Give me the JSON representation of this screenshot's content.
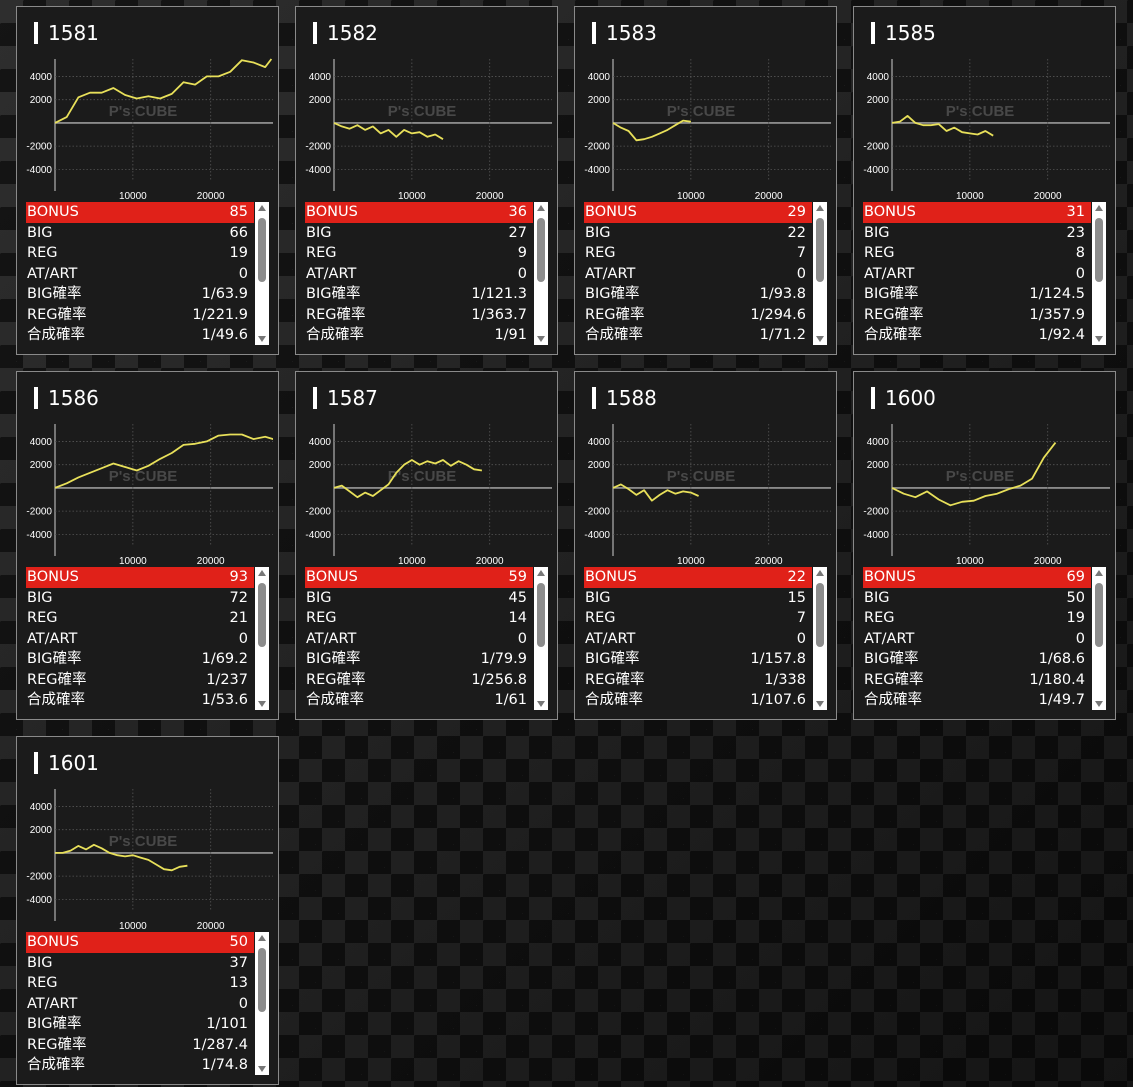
{
  "labels": {
    "bonus": "BONUS",
    "big": "BIG",
    "reg": "REG",
    "at_art": "AT/ART",
    "big_rate": "BIG確率",
    "reg_rate": "REG確率",
    "combined_rate": "合成確率"
  },
  "chart_axis": {
    "y_ticks": [
      "4000",
      "2000",
      "-2000",
      "-4000"
    ],
    "x_ticks": [
      "10000",
      "20000"
    ]
  },
  "watermark": "P's CUBE",
  "colors": {
    "line": "#e8e05a",
    "bonus_row": "#e02119",
    "card_bg": "#1b1b1b"
  },
  "machines": [
    {
      "id": "1581",
      "bonus": "85",
      "big": "66",
      "reg": "19",
      "at_art": "0",
      "big_rate": "1/63.9",
      "reg_rate": "1/221.9",
      "combined_rate": "1/49.6"
    },
    {
      "id": "1582",
      "bonus": "36",
      "big": "27",
      "reg": "9",
      "at_art": "0",
      "big_rate": "1/121.3",
      "reg_rate": "1/363.7",
      "combined_rate": "1/91"
    },
    {
      "id": "1583",
      "bonus": "29",
      "big": "22",
      "reg": "7",
      "at_art": "0",
      "big_rate": "1/93.8",
      "reg_rate": "1/294.6",
      "combined_rate": "1/71.2"
    },
    {
      "id": "1585",
      "bonus": "31",
      "big": "23",
      "reg": "8",
      "at_art": "0",
      "big_rate": "1/124.5",
      "reg_rate": "1/357.9",
      "combined_rate": "1/92.4"
    },
    {
      "id": "1586",
      "bonus": "93",
      "big": "72",
      "reg": "21",
      "at_art": "0",
      "big_rate": "1/69.2",
      "reg_rate": "1/237",
      "combined_rate": "1/53.6"
    },
    {
      "id": "1587",
      "bonus": "59",
      "big": "45",
      "reg": "14",
      "at_art": "0",
      "big_rate": "1/79.9",
      "reg_rate": "1/256.8",
      "combined_rate": "1/61"
    },
    {
      "id": "1588",
      "bonus": "22",
      "big": "15",
      "reg": "7",
      "at_art": "0",
      "big_rate": "1/157.8",
      "reg_rate": "1/338",
      "combined_rate": "1/107.6"
    },
    {
      "id": "1600",
      "bonus": "69",
      "big": "50",
      "reg": "19",
      "at_art": "0",
      "big_rate": "1/68.6",
      "reg_rate": "1/180.4",
      "combined_rate": "1/49.7"
    },
    {
      "id": "1601",
      "bonus": "50",
      "big": "37",
      "reg": "13",
      "at_art": "0",
      "big_rate": "1/101",
      "reg_rate": "1/287.4",
      "combined_rate": "1/74.8"
    }
  ],
  "chart_data": [
    {
      "type": "line",
      "title": "1581",
      "ylim": [
        -5000,
        5500
      ],
      "xlim": [
        0,
        28000
      ],
      "series": [
        {
          "x": [
            0,
            1500,
            3000,
            4500,
            6000,
            7500,
            9000,
            10500,
            12000,
            13500,
            15000,
            16500,
            18000,
            19500,
            21000,
            22500,
            24000,
            25500,
            27000,
            27800
          ],
          "y": [
            0,
            500,
            2200,
            2600,
            2600,
            3000,
            2400,
            2100,
            2300,
            2100,
            2500,
            3500,
            3300,
            4000,
            4000,
            4400,
            5400,
            5200,
            4800,
            5500
          ]
        }
      ]
    },
    {
      "type": "line",
      "title": "1582",
      "ylim": [
        -5000,
        5500
      ],
      "xlim": [
        0,
        28000
      ],
      "series": [
        {
          "x": [
            0,
            1000,
            2000,
            3000,
            4000,
            5000,
            6000,
            7000,
            8000,
            9000,
            10000,
            11000,
            12000,
            13000,
            14000
          ],
          "y": [
            0,
            -300,
            -500,
            -200,
            -600,
            -300,
            -900,
            -600,
            -1200,
            -600,
            -900,
            -800,
            -1200,
            -1000,
            -1400
          ]
        }
      ]
    },
    {
      "type": "line",
      "title": "1583",
      "ylim": [
        -5000,
        5500
      ],
      "xlim": [
        0,
        28000
      ],
      "series": [
        {
          "x": [
            0,
            1000,
            2000,
            3000,
            4000,
            5000,
            6000,
            7000,
            8000,
            9000,
            10000
          ],
          "y": [
            0,
            -400,
            -700,
            -1500,
            -1400,
            -1200,
            -900,
            -600,
            -200,
            200,
            100
          ]
        }
      ]
    },
    {
      "type": "line",
      "title": "1585",
      "ylim": [
        -5000,
        5500
      ],
      "xlim": [
        0,
        28000
      ],
      "series": [
        {
          "x": [
            0,
            1000,
            2000,
            3000,
            4000,
            5000,
            6000,
            7000,
            8000,
            9000,
            10000,
            11000,
            12000,
            13000
          ],
          "y": [
            0,
            100,
            600,
            0,
            -200,
            -200,
            -100,
            -700,
            -400,
            -800,
            -900,
            -1000,
            -700,
            -1100
          ]
        }
      ]
    },
    {
      "type": "line",
      "title": "1586",
      "ylim": [
        -5000,
        5500
      ],
      "xlim": [
        0,
        28000
      ],
      "series": [
        {
          "x": [
            0,
            1500,
            3000,
            4500,
            6000,
            7500,
            9000,
            10500,
            12000,
            13500,
            15000,
            16500,
            18000,
            19500,
            21000,
            22500,
            24000,
            25500,
            27000,
            29000
          ],
          "y": [
            0,
            400,
            900,
            1300,
            1700,
            2100,
            1800,
            1500,
            1900,
            2500,
            3000,
            3700,
            3800,
            4000,
            4500,
            4600,
            4600,
            4200,
            4400,
            4000
          ]
        }
      ]
    },
    {
      "type": "line",
      "title": "1587",
      "ylim": [
        -5000,
        5500
      ],
      "xlim": [
        0,
        28000
      ],
      "series": [
        {
          "x": [
            0,
            1000,
            2000,
            3000,
            4000,
            5000,
            6000,
            7000,
            8000,
            9000,
            10000,
            11000,
            12000,
            13000,
            14000,
            15000,
            16000,
            17000,
            18000,
            19000
          ],
          "y": [
            0,
            200,
            -300,
            -800,
            -400,
            -700,
            -200,
            300,
            1300,
            2000,
            2400,
            2000,
            2300,
            2100,
            2400,
            1900,
            2300,
            2000,
            1600,
            1500
          ]
        }
      ]
    },
    {
      "type": "line",
      "title": "1588",
      "ylim": [
        -5000,
        5500
      ],
      "xlim": [
        0,
        28000
      ],
      "series": [
        {
          "x": [
            0,
            1000,
            2000,
            3000,
            4000,
            5000,
            6000,
            7000,
            8000,
            9000,
            10000,
            11000
          ],
          "y": [
            0,
            300,
            -100,
            -600,
            -200,
            -1100,
            -600,
            -200,
            -500,
            -300,
            -400,
            -700
          ]
        }
      ]
    },
    {
      "type": "line",
      "title": "1600",
      "ylim": [
        -5000,
        5500
      ],
      "xlim": [
        0,
        28000
      ],
      "series": [
        {
          "x": [
            0,
            1500,
            3000,
            4500,
            6000,
            7500,
            9000,
            10500,
            12000,
            13500,
            15000,
            16500,
            18000,
            19500,
            21000
          ],
          "y": [
            0,
            -500,
            -800,
            -300,
            -1000,
            -1500,
            -1200,
            -1100,
            -700,
            -500,
            -100,
            200,
            800,
            2600,
            3900
          ]
        }
      ]
    },
    {
      "type": "line",
      "title": "1601",
      "ylim": [
        -5000,
        5500
      ],
      "xlim": [
        0,
        28000
      ],
      "series": [
        {
          "x": [
            0,
            1000,
            2000,
            3000,
            4000,
            5000,
            6000,
            7000,
            8000,
            9000,
            10000,
            11000,
            12000,
            13000,
            14000,
            15000,
            16000,
            17000
          ],
          "y": [
            0,
            0,
            200,
            600,
            300,
            700,
            400,
            0,
            -200,
            -300,
            -200,
            -400,
            -600,
            -1000,
            -1400,
            -1500,
            -1200,
            -1100
          ]
        }
      ]
    }
  ]
}
